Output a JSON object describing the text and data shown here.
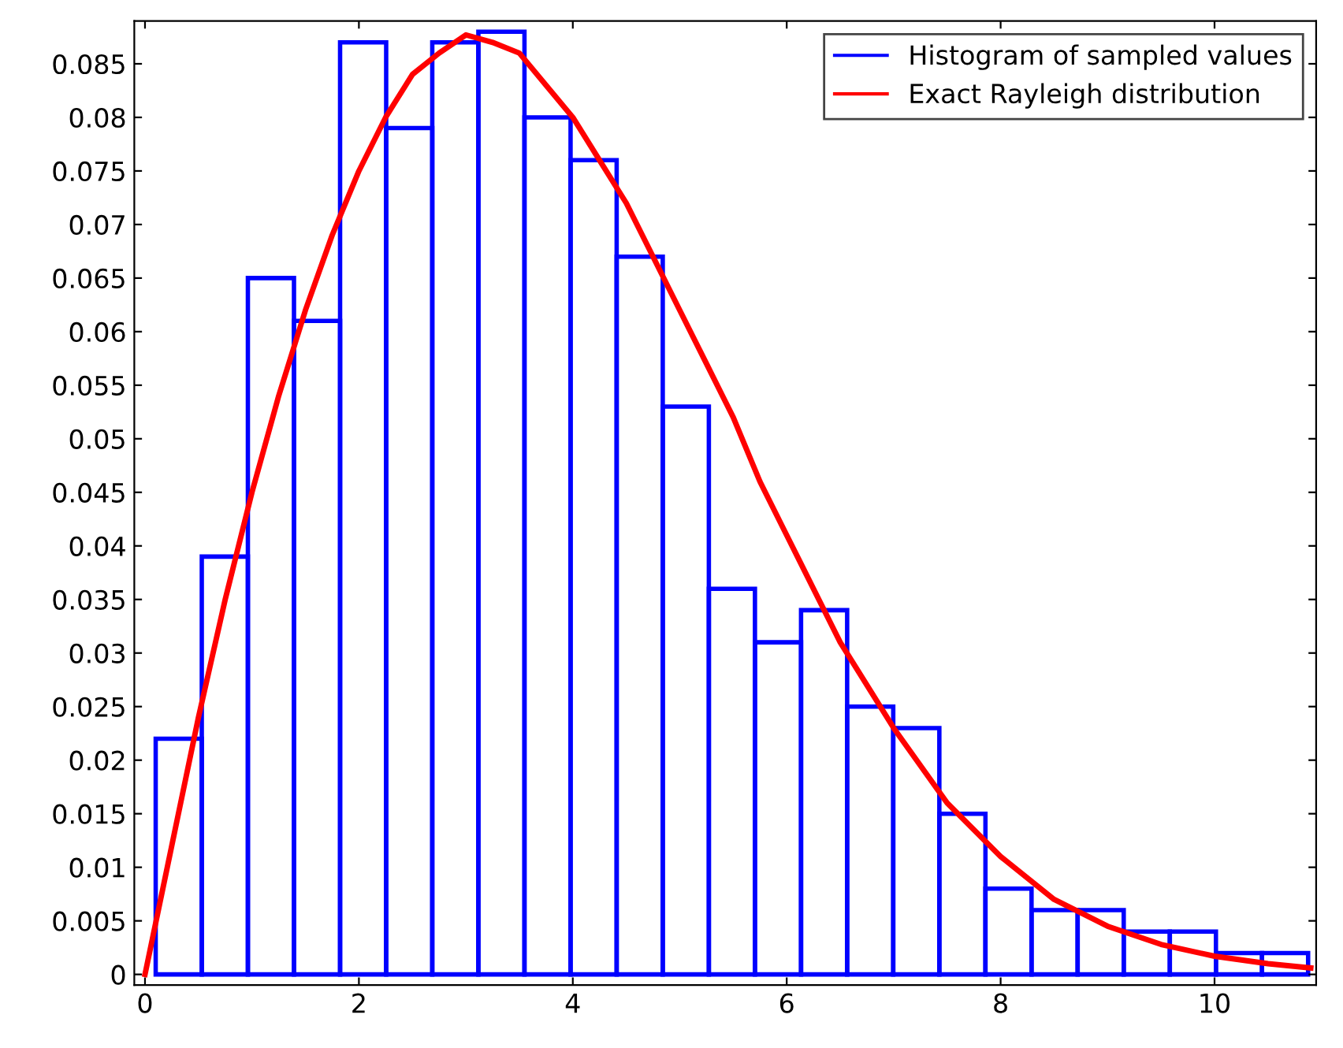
{
  "chart_data": {
    "type": "histogram",
    "xlim": [
      -0.1,
      10.95
    ],
    "ylim": [
      -0.001,
      0.089
    ],
    "xticks": [
      0,
      2,
      4,
      6,
      8,
      10
    ],
    "yticks": [
      0,
      0.005,
      0.01,
      0.015,
      0.02,
      0.025,
      0.03,
      0.035,
      0.04,
      0.045,
      0.05,
      0.055,
      0.06,
      0.065,
      0.07,
      0.075,
      0.08,
      0.085
    ],
    "series": [
      {
        "name": "Histogram of sampled values",
        "color": "#0000ff",
        "bins": [
          0.1,
          0.531,
          0.962,
          1.393,
          1.824,
          2.255,
          2.686,
          3.117,
          3.548,
          3.979,
          4.41,
          4.841,
          5.272,
          5.703,
          6.134,
          6.565,
          6.996,
          7.427,
          7.858,
          8.289,
          8.72,
          9.151,
          9.582,
          10.013,
          10.444,
          10.875
        ],
        "values": [
          0.022,
          0.039,
          0.065,
          0.061,
          0.087,
          0.079,
          0.087,
          0.088,
          0.08,
          0.076,
          0.067,
          0.053,
          0.036,
          0.031,
          0.034,
          0.025,
          0.023,
          0.015,
          0.008,
          0.006,
          0.006,
          0.004,
          0.004,
          0.002,
          0.002
        ]
      },
      {
        "type": "line",
        "name": "Exact Rayleigh distribution",
        "color": "#ff0000",
        "x": [
          0,
          0.25,
          0.5,
          0.75,
          1,
          1.25,
          1.5,
          1.75,
          2,
          2.25,
          2.5,
          2.75,
          3,
          3.25,
          3.5,
          3.75,
          4,
          4.25,
          4.5,
          4.75,
          5,
          5.25,
          5.5,
          5.75,
          6,
          6.5,
          7,
          7.5,
          8,
          8.5,
          9,
          9.5,
          10,
          10.5,
          10.9
        ],
        "values": [
          0,
          0.012,
          0.024,
          0.035,
          0.045,
          0.054,
          0.062,
          0.069,
          0.075,
          0.08,
          0.084,
          0.086,
          0.0877,
          0.087,
          0.086,
          0.083,
          0.08,
          0.076,
          0.072,
          0.067,
          0.062,
          0.057,
          0.052,
          0.046,
          0.041,
          0.031,
          0.023,
          0.016,
          0.011,
          0.007,
          0.0045,
          0.0028,
          0.0017,
          0.001,
          0.0006
        ]
      }
    ],
    "legend": "top right",
    "grid": false
  }
}
